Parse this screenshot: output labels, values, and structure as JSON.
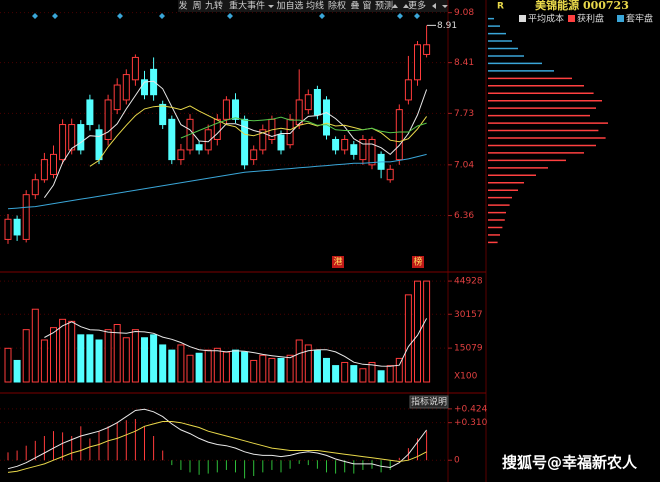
{
  "header": {
    "marker": "R",
    "title": "美锦能源 000723"
  },
  "toolbar": {
    "items": [
      "发",
      "周",
      "九转",
      "重大事件",
      "加自选",
      "均线",
      "除权",
      "叠",
      "窗",
      "预测",
      "更多"
    ]
  },
  "watermark": "搜狐号@幸福新农人",
  "chart_data": [
    {
      "type": "candlestick",
      "open": [
        6.04,
        6.31,
        6.04,
        6.64,
        6.84,
        6.91,
        7.11,
        7.24,
        7.58,
        7.91,
        7.51,
        7.38,
        7.78,
        7.91,
        8.18,
        8.18,
        8.32,
        7.85,
        7.65,
        7.11,
        7.24,
        7.31,
        7.24,
        7.38,
        7.65,
        7.91,
        7.65,
        7.11,
        7.24,
        7.38,
        7.44,
        7.31,
        7.58,
        7.78,
        8.05,
        7.91,
        7.38,
        7.24,
        7.31,
        7.11,
        7.04,
        7.18,
        6.84,
        7.11,
        7.91,
        8.18,
        8.52
      ],
      "high": [
        6.38,
        6.36,
        6.7,
        6.92,
        7.2,
        7.3,
        7.65,
        7.66,
        7.64,
        7.98,
        7.58,
        7.98,
        8.2,
        8.32,
        8.52,
        8.3,
        8.48,
        7.9,
        7.7,
        7.32,
        7.72,
        7.36,
        7.58,
        7.72,
        7.96,
        8.0,
        7.7,
        7.3,
        7.58,
        7.7,
        7.5,
        7.72,
        8.32,
        8.05,
        8.1,
        7.96,
        7.42,
        7.44,
        7.36,
        7.44,
        7.42,
        7.22,
        7.04,
        7.85,
        8.5,
        8.7,
        8.91
      ],
      "low": [
        5.98,
        6.02,
        6.0,
        6.58,
        6.8,
        6.86,
        7.05,
        7.18,
        7.18,
        7.5,
        7.05,
        7.3,
        7.72,
        7.85,
        8.1,
        7.92,
        7.9,
        7.52,
        7.05,
        7.04,
        7.18,
        7.18,
        7.18,
        7.3,
        7.58,
        7.6,
        6.98,
        7.04,
        7.18,
        7.32,
        7.18,
        7.26,
        7.52,
        7.72,
        7.65,
        7.38,
        7.18,
        7.18,
        7.11,
        7.04,
        6.98,
        6.86,
        6.8,
        7.04,
        7.85,
        8.1,
        8.48
      ],
      "close": [
        6.31,
        6.1,
        6.64,
        6.84,
        7.11,
        7.18,
        7.58,
        7.58,
        7.24,
        7.58,
        7.11,
        7.91,
        8.11,
        8.25,
        8.48,
        7.98,
        7.98,
        7.58,
        7.11,
        7.24,
        7.65,
        7.24,
        7.51,
        7.65,
        7.91,
        7.65,
        7.04,
        7.24,
        7.51,
        7.65,
        7.24,
        7.65,
        7.91,
        7.98,
        7.71,
        7.44,
        7.24,
        7.38,
        7.18,
        7.38,
        7.38,
        6.98,
        6.98,
        7.78,
        8.18,
        8.65,
        8.65
      ],
      "up_color": "#ff3b3b",
      "down_color": "#54ffff",
      "lines": [
        {
          "color": "#e8e8e8",
          "values": [
            null,
            null,
            null,
            null,
            6.6,
            6.77,
            7.07,
            7.26,
            7.34,
            7.43,
            7.42,
            7.48,
            7.59,
            7.79,
            7.97,
            8.15,
            8.16,
            8.06,
            7.82,
            7.58,
            7.51,
            7.36,
            7.35,
            7.46,
            7.59,
            7.59,
            7.55,
            7.5,
            7.47,
            7.42,
            7.46,
            7.46,
            7.59,
            7.69,
            7.7,
            7.74,
            7.66,
            7.55,
            7.39,
            7.32,
            7.32,
            7.27,
            7.18,
            7.3,
            7.46,
            7.71,
            8.05
          ]
        },
        {
          "color": "#e8d84a",
          "values": [
            null,
            null,
            null,
            null,
            null,
            null,
            null,
            null,
            null,
            7.02,
            7.1,
            7.28,
            7.43,
            7.57,
            7.7,
            7.79,
            7.82,
            7.83,
            7.81,
            7.78,
            7.83,
            7.76,
            7.7,
            7.64,
            7.58,
            7.55,
            7.45,
            7.43,
            7.47,
            7.51,
            7.53,
            7.51,
            7.57,
            7.6,
            7.56,
            7.6,
            7.56,
            7.57,
            7.54,
            7.51,
            7.53,
            7.47,
            7.37,
            7.35,
            7.39,
            7.52,
            7.69
          ]
        },
        {
          "color": "#56c54a",
          "values": [
            null,
            null,
            null,
            null,
            null,
            null,
            null,
            null,
            null,
            null,
            null,
            null,
            null,
            null,
            null,
            null,
            null,
            null,
            null,
            7.4,
            7.45,
            7.5,
            7.55,
            7.6,
            7.64,
            7.67,
            7.64,
            7.63,
            7.64,
            7.65,
            7.68,
            7.64,
            7.64,
            7.62,
            7.57,
            7.58,
            7.51,
            7.5,
            7.5,
            7.51,
            7.53,
            7.49,
            7.47,
            7.48,
            7.48,
            7.56,
            7.6
          ]
        },
        {
          "color": "#3aa6d8",
          "values": [
            6.45,
            6.46,
            6.47,
            6.48,
            6.5,
            6.52,
            6.54,
            6.56,
            6.58,
            6.6,
            6.62,
            6.64,
            6.66,
            6.68,
            6.7,
            6.72,
            6.74,
            6.76,
            6.78,
            6.8,
            6.82,
            6.84,
            6.86,
            6.88,
            6.9,
            6.92,
            6.94,
            6.95,
            6.96,
            6.97,
            6.98,
            6.99,
            7.0,
            7.01,
            7.02,
            7.03,
            7.04,
            7.05,
            7.06,
            7.06,
            7.07,
            7.08,
            7.08,
            7.1,
            7.12,
            7.15,
            7.18
          ]
        }
      ],
      "peak_label": 8.91,
      "event_tags": [
        "港",
        "榜"
      ],
      "ylim": [
        5.63,
        9.25
      ],
      "yticks": [
        9.08,
        8.41,
        7.73,
        7.04,
        6.36
      ],
      "grid": true
    },
    {
      "type": "volume",
      "values": [
        15000,
        9600,
        23300,
        32400,
        18700,
        24200,
        27900,
        27000,
        21000,
        21000,
        18700,
        23300,
        25600,
        19700,
        23300,
        19700,
        21000,
        16500,
        14200,
        16500,
        11900,
        12800,
        14200,
        15000,
        13300,
        14200,
        13300,
        9600,
        11900,
        10500,
        10500,
        11900,
        18700,
        16500,
        14200,
        10500,
        7300,
        8700,
        7300,
        5900,
        8700,
        5000,
        7300,
        10500,
        38800,
        44900,
        44928
      ],
      "lines": [
        {
          "color": "#e8e8e8",
          "values": [
            null,
            null,
            null,
            null,
            19800,
            22000,
            25000,
            26800,
            24600,
            23300,
            23100,
            22200,
            21900,
            21700,
            22500,
            22300,
            21700,
            20000,
            19000,
            17600,
            15700,
            14400,
            13900,
            13900,
            13400,
            13900,
            13700,
            13100,
            12300,
            11700,
            11200,
            10800,
            12700,
            13900,
            14400,
            14400,
            13400,
            11400,
            8800,
            7900,
            7600,
            7100,
            7000,
            7500,
            15800,
            20800,
            28300
          ]
        }
      ],
      "unit_label": "X100",
      "ylim": [
        0,
        46300
      ],
      "yticks": [
        44928,
        30157,
        15079
      ],
      "grid": true
    },
    {
      "type": "macd",
      "histogram": [
        0.065,
        0.08,
        0.12,
        0.16,
        0.2,
        0.24,
        0.23,
        0.2,
        0.28,
        0.18,
        0.24,
        0.28,
        0.31,
        0.33,
        0.34,
        0.28,
        0.2,
        0.08,
        -0.04,
        -0.08,
        -0.1,
        -0.12,
        -0.11,
        -0.1,
        -0.08,
        -0.1,
        -0.15,
        -0.13,
        -0.1,
        -0.08,
        -0.1,
        -0.07,
        -0.03,
        -0.04,
        -0.07,
        -0.1,
        -0.11,
        -0.1,
        -0.11,
        -0.08,
        -0.07,
        -0.1,
        -0.08,
        0.02,
        0.1,
        0.18,
        0.24
      ],
      "positive_color": "#ff3b3b",
      "negative_color": "#2fbf3a",
      "lines": [
        {
          "color": "#e8e8e8",
          "values": [
            -0.07,
            -0.05,
            -0.02,
            0.02,
            0.06,
            0.1,
            0.14,
            0.17,
            0.2,
            0.22,
            0.24,
            0.27,
            0.31,
            0.36,
            0.41,
            0.42,
            0.4,
            0.36,
            0.3,
            0.25,
            0.22,
            0.18,
            0.15,
            0.13,
            0.12,
            0.1,
            0.07,
            0.05,
            0.04,
            0.04,
            0.03,
            0.04,
            0.06,
            0.07,
            0.06,
            0.04,
            0.01,
            -0.01,
            -0.03,
            -0.03,
            -0.03,
            -0.05,
            -0.06,
            -0.02,
            0.05,
            0.15,
            0.25
          ]
        },
        {
          "color": "#e8d84a",
          "values": [
            -0.1,
            -0.09,
            -0.07,
            -0.05,
            -0.03,
            0.0,
            0.03,
            0.06,
            0.08,
            0.11,
            0.13,
            0.16,
            0.18,
            0.21,
            0.24,
            0.28,
            0.3,
            0.32,
            0.32,
            0.31,
            0.29,
            0.27,
            0.24,
            0.22,
            0.2,
            0.18,
            0.16,
            0.14,
            0.12,
            0.1,
            0.09,
            0.08,
            0.08,
            0.08,
            0.08,
            0.07,
            0.06,
            0.05,
            0.04,
            0.03,
            0.02,
            0.01,
            0.0,
            -0.01,
            0.0,
            0.03,
            0.07
          ]
        }
      ],
      "button": "指标说明",
      "ylim": [
        -0.163,
        0.53
      ],
      "yticks": [
        {
          "value": 0.424,
          "label": "+0.424"
        },
        {
          "value": 0.31,
          "label": "+0.310"
        },
        0
      ],
      "grid": true
    },
    {
      "type": "chip",
      "levels": [
        9.0,
        8.9,
        8.8,
        8.7,
        8.6,
        8.5,
        8.4,
        8.3,
        8.2,
        8.1,
        8.0,
        7.9,
        7.8,
        7.7,
        7.6,
        7.5,
        7.4,
        7.3,
        7.2,
        7.1,
        7.0,
        6.9,
        6.8,
        6.7,
        6.6,
        6.5,
        6.4,
        6.3,
        6.2,
        6.1,
        6.0
      ],
      "series": [
        {
          "name": "平均成本",
          "color": "#dcdcdc"
        },
        {
          "name": "获利盘",
          "color": "#ff4040",
          "values": [
            null,
            null,
            null,
            null,
            null,
            null,
            null,
            null,
            70,
            80,
            88,
            95,
            90,
            85,
            100,
            92,
            98,
            90,
            80,
            65,
            50,
            40,
            30,
            25,
            20,
            18,
            15,
            14,
            12,
            10,
            8
          ]
        },
        {
          "name": "套牢盘",
          "color": "#3aa6d8",
          "values": [
            5,
            10,
            15,
            20,
            25,
            30,
            45,
            55,
            null,
            null,
            null,
            null,
            null,
            null,
            null,
            null,
            null,
            null,
            null,
            null,
            null,
            null,
            null,
            null,
            null,
            null,
            null,
            null,
            null,
            null,
            null
          ]
        }
      ],
      "ylim": [
        5.63,
        9.25
      ],
      "xlim": [
        0,
        100
      ]
    }
  ]
}
